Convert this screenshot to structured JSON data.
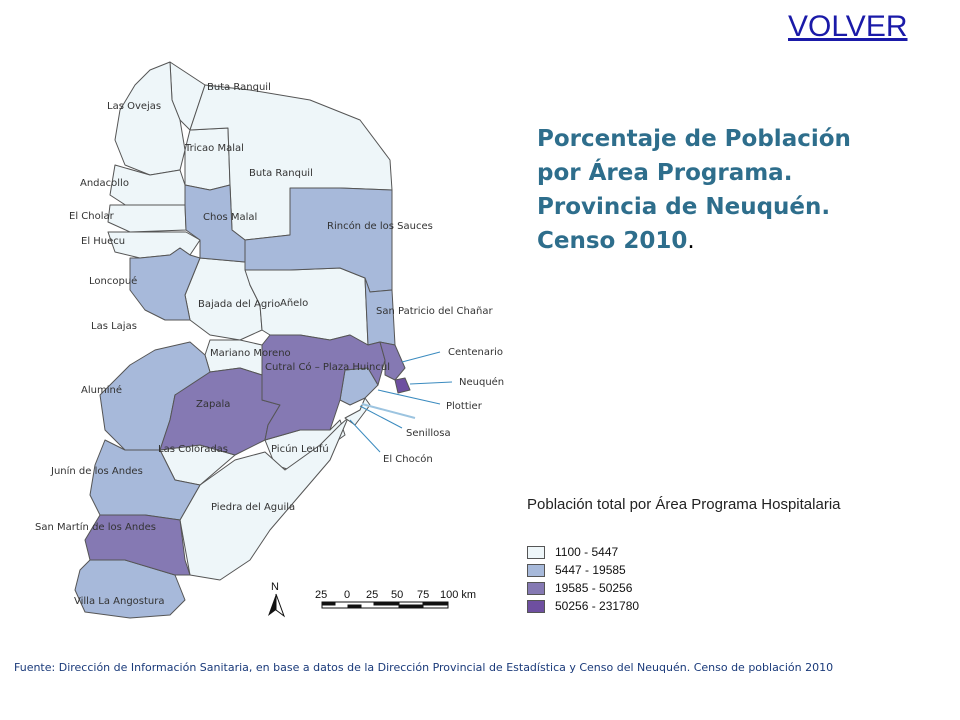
{
  "volver_link": "VOLVER",
  "title": "Porcentaje de Población por Área Programa. Provincia de Neuquén. Censo 2010",
  "title_period": ".",
  "legend": {
    "title": "Población total por Área Programa Hospitalaria",
    "classes": [
      {
        "range": "1100 - 5447",
        "color": "#eef6f9"
      },
      {
        "range": "5447 - 19585",
        "color": "#a7b9da"
      },
      {
        "range": "19585 - 50256",
        "color": "#8579b3"
      },
      {
        "range": "50256 - 231780",
        "color": "#6e4fa0"
      }
    ]
  },
  "scale": {
    "ticks": [
      "25",
      "0",
      "25",
      "50",
      "75",
      "100 km"
    ],
    "north": "N"
  },
  "areas": {
    "buta_ranquil_n": "Buta Ranquil",
    "las_ovejas": "Las Ovejas",
    "tricao_malal": "Tricao Malal",
    "andacollo": "Andacollo",
    "buta_ranquil": "Buta Ranquil",
    "el_cholar": "El Cholar",
    "chos_malal": "Chos Malal",
    "rincon": "Rincón de los Sauces",
    "el_huecu": "El Huecu",
    "loncopue": "Loncopué",
    "bajada": "Bajada del Agrio",
    "anelo": "Añelo",
    "san_patricio": "San Patricio del Chañar",
    "las_lajas": "Las Lajas",
    "mariano": "Mariano Moreno",
    "cutral": "Cutral Có – Plaza Huincul",
    "centenario": "Centenario",
    "neuquen": "Neuquén",
    "alumine": "Aluminé",
    "zapala": "Zapala",
    "plottier": "Plottier",
    "senillosa": "Senillosa",
    "las_coloradas": "Las Coloradas",
    "picun": "Picún Leufú",
    "el_chocon": "El Chocón",
    "junin": "Junín de los Andes",
    "piedra": "Piedra del Aguila",
    "san_martin": "San Martín de los Andes",
    "villa": "Villa La Angostura"
  },
  "source": "Fuente: Dirección de Información Sanitaria, en base a datos de la Dirección Provincial de Estadística y Censo del Neuquén. Censo de población 2010"
}
